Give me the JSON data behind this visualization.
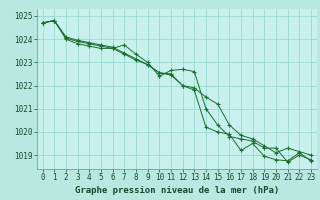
{
  "title": "Graphe pression niveau de la mer (hPa)",
  "background_color": "#b8e8e0",
  "plot_background_color": "#c8f0ec",
  "grid_color": "#90d4cc",
  "line_color": "#1a6e2e",
  "marker_color": "#1a6e2e",
  "xlim": [
    -0.5,
    23.5
  ],
  "ylim": [
    1018.4,
    1025.3
  ],
  "yticks": [
    1019,
    1020,
    1021,
    1022,
    1023,
    1024,
    1025
  ],
  "xticks": [
    0,
    1,
    2,
    3,
    4,
    5,
    6,
    7,
    8,
    9,
    10,
    11,
    12,
    13,
    14,
    15,
    16,
    17,
    18,
    19,
    20,
    21,
    22,
    23
  ],
  "series1_x": [
    0,
    1,
    2,
    3,
    4,
    5,
    6,
    7,
    8,
    9,
    10,
    11,
    12,
    13,
    14,
    15,
    16,
    17,
    18,
    19,
    20,
    21,
    22,
    23
  ],
  "series1_y": [
    1024.7,
    1024.8,
    1024.0,
    1023.8,
    1023.7,
    1023.6,
    1023.6,
    1023.75,
    1023.35,
    1023.0,
    1022.4,
    1022.65,
    1022.7,
    1022.6,
    1021.0,
    1020.3,
    1019.8,
    1019.7,
    1019.6,
    1019.3,
    1019.3,
    1018.7,
    1019.0,
    1018.8
  ],
  "series2_x": [
    0,
    1,
    2,
    3,
    4,
    5,
    6,
    7,
    8,
    9,
    10,
    11,
    12,
    13,
    14,
    15,
    16,
    17,
    18,
    19,
    20,
    21,
    22,
    23
  ],
  "series2_y": [
    1024.7,
    1024.8,
    1024.1,
    1023.95,
    1023.85,
    1023.75,
    1023.65,
    1023.4,
    1023.15,
    1022.9,
    1022.55,
    1022.45,
    1022.0,
    1021.9,
    1021.5,
    1021.2,
    1020.3,
    1019.85,
    1019.7,
    1019.4,
    1019.1,
    1019.3,
    1019.15,
    1019.0
  ],
  "series3_x": [
    0,
    1,
    2,
    3,
    4,
    5,
    6,
    7,
    8,
    9,
    10,
    11,
    12,
    13,
    14,
    15,
    16,
    17,
    18,
    19,
    20,
    21,
    22,
    23
  ],
  "series3_y": [
    1024.7,
    1024.8,
    1024.05,
    1023.9,
    1023.8,
    1023.7,
    1023.6,
    1023.35,
    1023.1,
    1022.9,
    1022.55,
    1022.5,
    1022.0,
    1021.8,
    1020.2,
    1020.0,
    1019.9,
    1019.2,
    1019.5,
    1018.95,
    1018.8,
    1018.75,
    1019.1,
    1018.75
  ],
  "tick_fontsize": 5.5,
  "title_fontsize": 6.5
}
